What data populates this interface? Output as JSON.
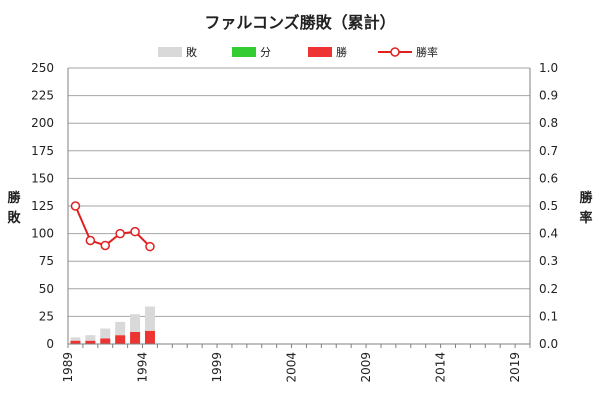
{
  "chart_data": {
    "type": "bar",
    "title": "ファルコンズ勝敗（累計）",
    "ylabel_left": "勝敗",
    "ylabel_right": "勝率",
    "years": [
      1989,
      1990,
      1991,
      1992,
      1993,
      1994
    ],
    "series": [
      {
        "name": "敗",
        "kind": "bar",
        "color": "#d9d9d9",
        "values": [
          3,
          5,
          9,
          12,
          16,
          22
        ]
      },
      {
        "name": "分",
        "kind": "bar",
        "color": "#33cc33",
        "values": [
          0,
          0,
          0,
          0,
          0,
          0
        ]
      },
      {
        "name": "勝",
        "kind": "bar",
        "color": "#ee3333",
        "values": [
          3,
          3,
          5,
          8,
          11,
          12
        ]
      },
      {
        "name": "勝率",
        "kind": "line",
        "axis": "right",
        "color": "#e02020",
        "values": [
          0.5,
          0.375,
          0.357,
          0.4,
          0.407,
          0.353
        ]
      }
    ],
    "x_ticks": [
      "1989",
      "1994",
      "1999",
      "2004",
      "2009",
      "2014",
      "2019"
    ],
    "x_range": [
      1989,
      2020
    ],
    "ylim_left": [
      0,
      250
    ],
    "yticks_left": [
      "0",
      "25",
      "50",
      "75",
      "100",
      "125",
      "150",
      "175",
      "200",
      "225",
      "250"
    ],
    "ylim_right": [
      0,
      1.0
    ],
    "yticks_right": [
      "0.0",
      "0.1",
      "0.2",
      "0.3",
      "0.4",
      "0.5",
      "0.6",
      "0.7",
      "0.8",
      "0.9",
      "1.0"
    ],
    "legend_position": "top",
    "grid": true
  }
}
